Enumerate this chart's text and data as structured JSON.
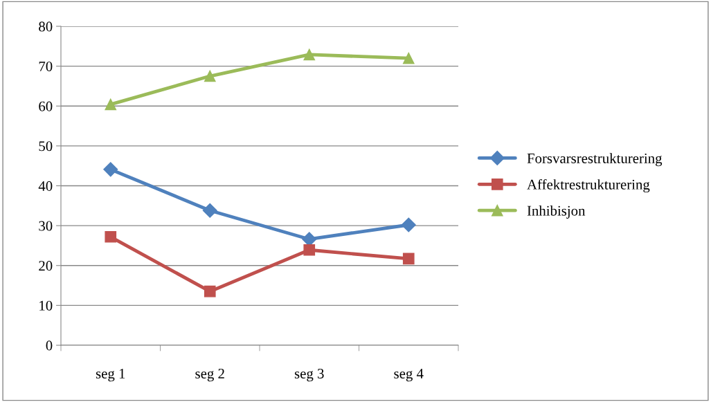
{
  "chart_data": {
    "type": "line",
    "categories": [
      "seg 1",
      "seg 2",
      "seg 3",
      "seg 4"
    ],
    "series": [
      {
        "name": "Forsvarsrestrukturering",
        "color": "#4f81bd",
        "marker": "diamond",
        "values": [
          44.1,
          33.8,
          26.6,
          30.2
        ]
      },
      {
        "name": "Affektrestrukturering",
        "color": "#c0504d",
        "marker": "square",
        "values": [
          27.2,
          13.5,
          23.9,
          21.7
        ]
      },
      {
        "name": "Inhibisjon",
        "color": "#9bbb59",
        "marker": "triangle",
        "values": [
          60.4,
          67.5,
          72.9,
          72.0
        ]
      }
    ],
    "ylim": [
      0,
      80
    ],
    "yticks": [
      0,
      10,
      20,
      30,
      40,
      50,
      60,
      70,
      80
    ],
    "grid": "y",
    "legend": "right",
    "line_style": "solid"
  }
}
